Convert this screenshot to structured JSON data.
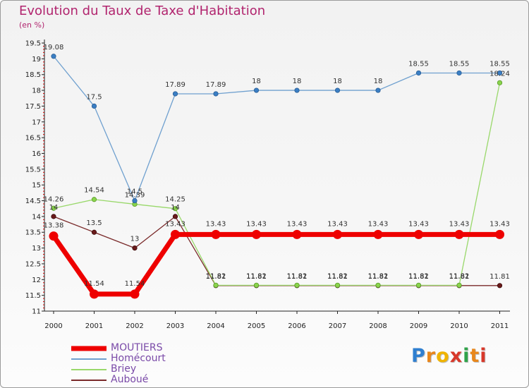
{
  "title": "Evolution du Taux de Taxe d'Habitation",
  "unit_label": "(en %)",
  "logo": {
    "text": "Proxiti",
    "letters": [
      "P",
      "r",
      "o",
      "x",
      "i",
      "t",
      "i"
    ],
    "letter_colors": [
      "#2f7fd0",
      "#e8871c",
      "#f0b400",
      "#d8382a",
      "#2fa34a",
      "#e8871c",
      "#d8382a"
    ]
  },
  "chart_data": {
    "type": "line",
    "title": "Evolution du Taux de Taxe d'Habitation",
    "ylabel": "(en %)",
    "xlabel": "",
    "x": [
      "2000",
      "2001",
      "2002",
      "2003",
      "2004",
      "2005",
      "2006",
      "2007",
      "2008",
      "2009",
      "2010",
      "2011"
    ],
    "ylim": [
      11,
      19.5
    ],
    "yticks": [
      "11",
      "11.5",
      "12",
      "12.5",
      "13",
      "13.5",
      "14",
      "14.5",
      "15",
      "15.5",
      "16",
      "16.5",
      "17",
      "17.5",
      "18",
      "18.5",
      "19",
      "19.5"
    ],
    "grid": false,
    "legend_position": "bottom-left",
    "series": [
      {
        "name": "MOUTIERS",
        "color": "#ee0000",
        "values": [
          13.38,
          11.54,
          11.54,
          13.43,
          13.43,
          13.43,
          13.43,
          13.43,
          13.43,
          13.43,
          13.43,
          13.43
        ],
        "labels": [
          "13.38",
          "11.54",
          "11.54",
          "13.43",
          "13.43",
          "13.43",
          "13.43",
          "13.43",
          "13.43",
          "13.43",
          "13.43",
          "13.43"
        ]
      },
      {
        "name": "Homécourt",
        "color": "#6fa0cf",
        "values": [
          19.08,
          17.5,
          14.5,
          17.89,
          17.89,
          18,
          18,
          18,
          18,
          18.55,
          18.55,
          18.55
        ],
        "labels": [
          "19.08",
          "17.5",
          "14.5",
          "17.89",
          "17.89",
          "18",
          "18",
          "18",
          "18",
          "18.55",
          "18.55",
          "18.55"
        ]
      },
      {
        "name": "Briey",
        "color": "#99d86a",
        "values": [
          14.26,
          14.54,
          14.39,
          14.25,
          11.82,
          11.82,
          11.82,
          11.82,
          11.82,
          11.82,
          11.82,
          18.24
        ],
        "labels": [
          "14.26",
          "14.54",
          "14.39",
          "14.25",
          "11.82",
          "11.82",
          "11.82",
          "11.82",
          "11.82",
          "11.82",
          "11.82",
          "18.24"
        ]
      },
      {
        "name": "Auboué",
        "color": "#7a2a2a",
        "values": [
          14,
          13.5,
          13,
          14,
          11.81,
          11.81,
          11.81,
          11.81,
          11.81,
          11.81,
          11.81,
          11.81
        ],
        "labels": [
          "14",
          "13.5",
          "13",
          "14",
          "11.81",
          "11.81",
          "11.81",
          "11.81",
          "11.81",
          "11.81",
          "11.81",
          "11.81"
        ]
      }
    ]
  }
}
